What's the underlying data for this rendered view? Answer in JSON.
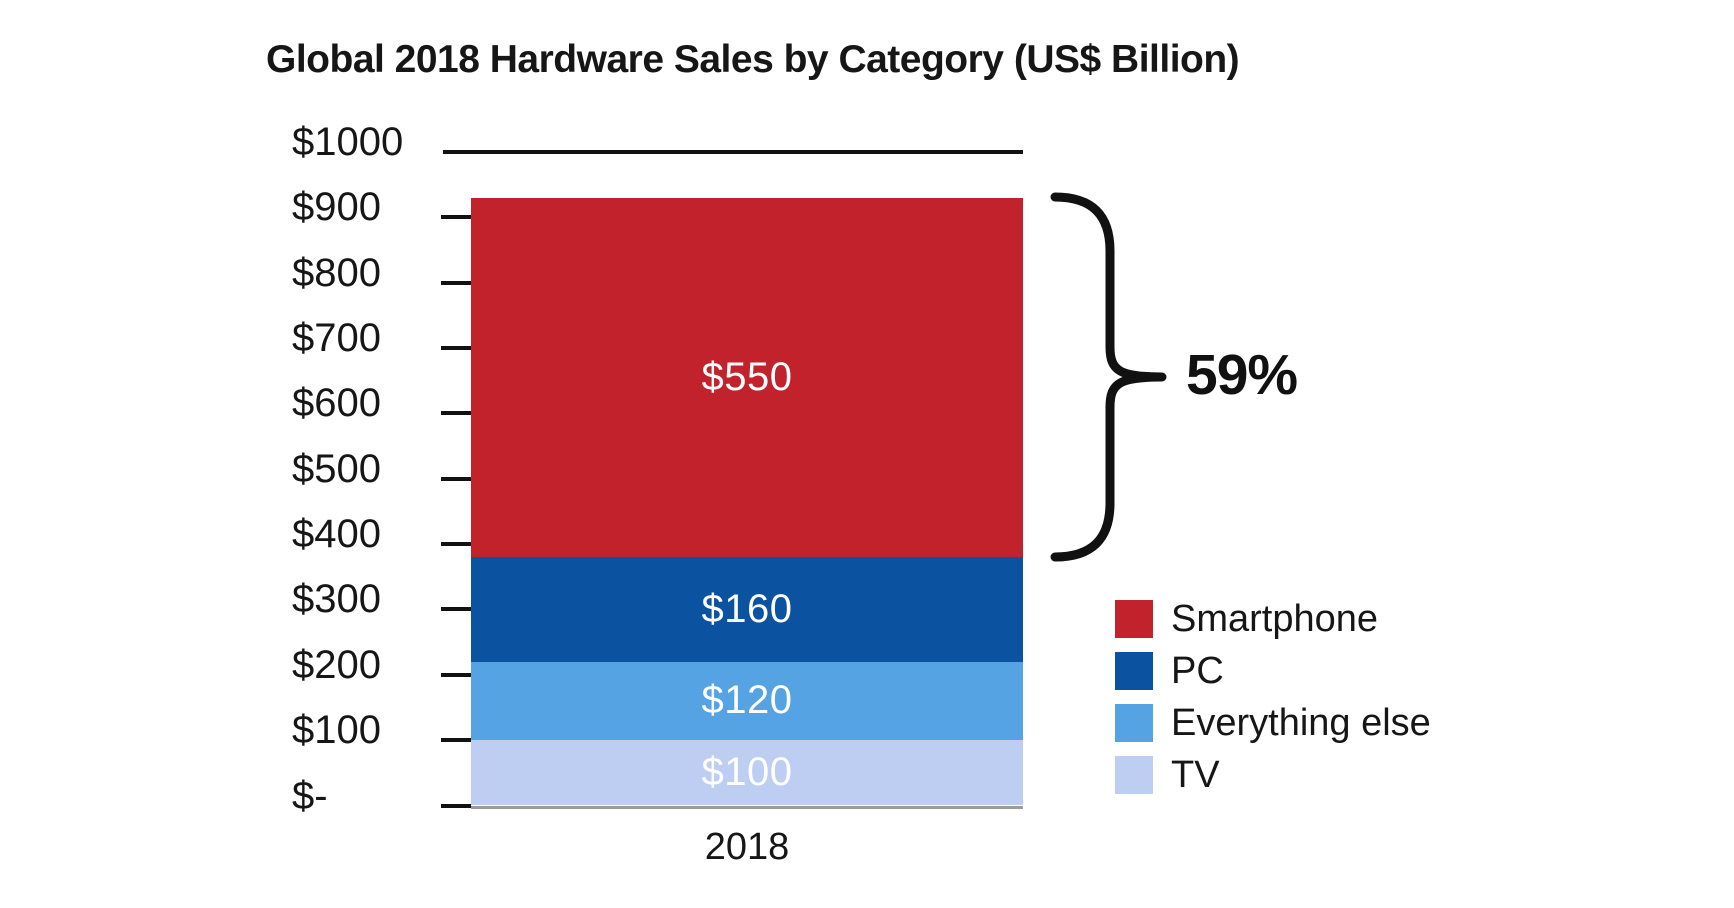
{
  "title": "Global 2018 Hardware Sales by Category (US$ Billion)",
  "annotation": {
    "text": "59%"
  },
  "chart_data": {
    "type": "bar",
    "stacked": true,
    "title": "Global 2018 Hardware Sales by Category (US$ Billion)",
    "categories": [
      "2018"
    ],
    "series": [
      {
        "name": "TV",
        "values": [
          100
        ],
        "data_label": "$100",
        "color": "#bdcef2"
      },
      {
        "name": "Everything else",
        "values": [
          120
        ],
        "data_label": "$120",
        "color": "#56a3e4"
      },
      {
        "name": "PC",
        "values": [
          160
        ],
        "data_label": "$160",
        "color": "#0b52a0"
      },
      {
        "name": "Smartphone",
        "values": [
          550
        ],
        "data_label": "$550",
        "color": "#c1222b"
      }
    ],
    "total": 930,
    "xlabel": "",
    "ylabel": "",
    "ylim": [
      0,
      1000
    ],
    "grid": false,
    "y_ticks": [
      {
        "label": "$1000",
        "value": 1000
      },
      {
        "label": "$900",
        "value": 900
      },
      {
        "label": "$800",
        "value": 800
      },
      {
        "label": "$700",
        "value": 700
      },
      {
        "label": "$600",
        "value": 600
      },
      {
        "label": "$500",
        "value": 500
      },
      {
        "label": "$400",
        "value": 400
      },
      {
        "label": "$300",
        "value": 300
      },
      {
        "label": "$200",
        "value": 200
      },
      {
        "label": "$100",
        "value": 100
      },
      {
        "label": "$-",
        "value": 0
      }
    ],
    "legend": [
      "Smartphone",
      "PC",
      "Everything else",
      "TV"
    ],
    "legend_position": "right-bottom",
    "annotation": {
      "text": "59%",
      "span_series": "Smartphone",
      "percent_of_total": 59
    }
  }
}
